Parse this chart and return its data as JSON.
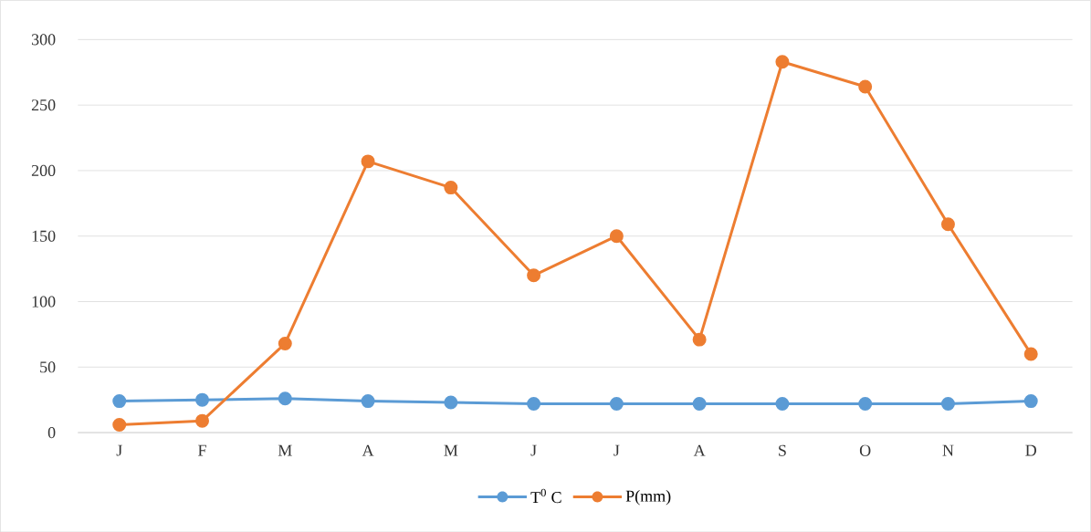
{
  "chart_data": {
    "type": "line",
    "categories": [
      "J",
      "F",
      "M",
      "A",
      "M",
      "J",
      "J",
      "A",
      "S",
      "O",
      "N",
      "D"
    ],
    "series": [
      {
        "name": "T$^{0}$ C",
        "color": "#5b9bd5",
        "values": [
          24,
          25,
          26,
          24,
          23,
          22,
          22,
          22,
          22,
          22,
          22,
          24
        ]
      },
      {
        "name": "P(mm)",
        "color": "#ed7d31",
        "values": [
          6,
          9,
          68,
          207,
          187,
          120,
          150,
          71,
          283,
          264,
          159,
          60
        ]
      }
    ],
    "ylim": [
      0,
      300
    ],
    "yticks": [
      0,
      50,
      100,
      150,
      200,
      250,
      300
    ],
    "grid": "y",
    "legend": "bottom",
    "marker": "circle",
    "line_style": "solid"
  }
}
